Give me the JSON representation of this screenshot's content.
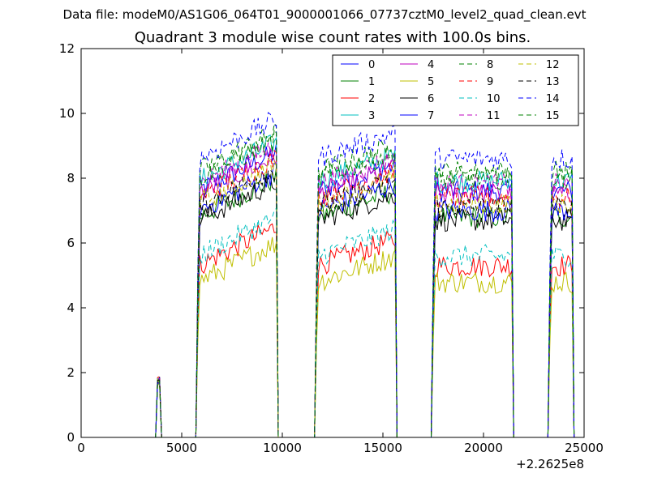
{
  "chart_data": {
    "type": "line",
    "suptitle": "Data file: modeM0/AS1G06_064T01_9000001066_07737cztM0_level2_quad_clean.evt",
    "title": "Quadrant 3 module wise count rates with 100.0s bins.",
    "x_offset_label": "+2.2625e8",
    "xlim": [
      0,
      25000
    ],
    "ylim": [
      0,
      12
    ],
    "x_ticks": [
      0,
      5000,
      10000,
      15000,
      20000,
      25000
    ],
    "y_ticks": [
      0,
      2,
      4,
      6,
      8,
      10,
      12
    ],
    "grid": false,
    "legend_position": "top-right",
    "legend_columns": 4,
    "segments": [
      {
        "x_start": 3800,
        "x_end": 3900,
        "note": "short active interval"
      },
      {
        "x_start": 5800,
        "x_end": 9700
      },
      {
        "x_start": 11700,
        "x_end": 15600
      },
      {
        "x_start": 17500,
        "x_end": 21400
      },
      {
        "x_start": 23300,
        "x_end": 24400
      }
    ],
    "series": [
      {
        "name": "0",
        "color": "#0000ff",
        "dash": "solid",
        "level": 7.6
      },
      {
        "name": "1",
        "color": "#008000",
        "dash": "solid",
        "level": 6.8
      },
      {
        "name": "2",
        "color": "#ff0000",
        "dash": "solid",
        "level": 5.3
      },
      {
        "name": "3",
        "color": "#00bfbf",
        "dash": "solid",
        "level": 7.9
      },
      {
        "name": "4",
        "color": "#bf00bf",
        "dash": "solid",
        "level": 7.5
      },
      {
        "name": "5",
        "color": "#bfbf00",
        "dash": "solid",
        "level": 4.8
      },
      {
        "name": "6",
        "color": "#000000",
        "dash": "solid",
        "level": 6.7
      },
      {
        "name": "7",
        "color": "#0000ff",
        "dash": "solid",
        "level": 7.0
      },
      {
        "name": "8",
        "color": "#008000",
        "dash": "dashed",
        "level": 8.2
      },
      {
        "name": "9",
        "color": "#ff0000",
        "dash": "dashed",
        "level": 7.4
      },
      {
        "name": "10",
        "color": "#00bfbf",
        "dash": "dashed",
        "level": 5.6
      },
      {
        "name": "11",
        "color": "#bf00bf",
        "dash": "dashed",
        "level": 7.8
      },
      {
        "name": "12",
        "color": "#bfbf00",
        "dash": "dashed",
        "level": 7.2
      },
      {
        "name": "13",
        "color": "#000000",
        "dash": "dashed",
        "level": 7.1
      },
      {
        "name": "14",
        "color": "#0000ff",
        "dash": "dashed",
        "level": 8.6
      },
      {
        "name": "15",
        "color": "#008000",
        "dash": "dashed",
        "level": 8.0
      }
    ]
  }
}
